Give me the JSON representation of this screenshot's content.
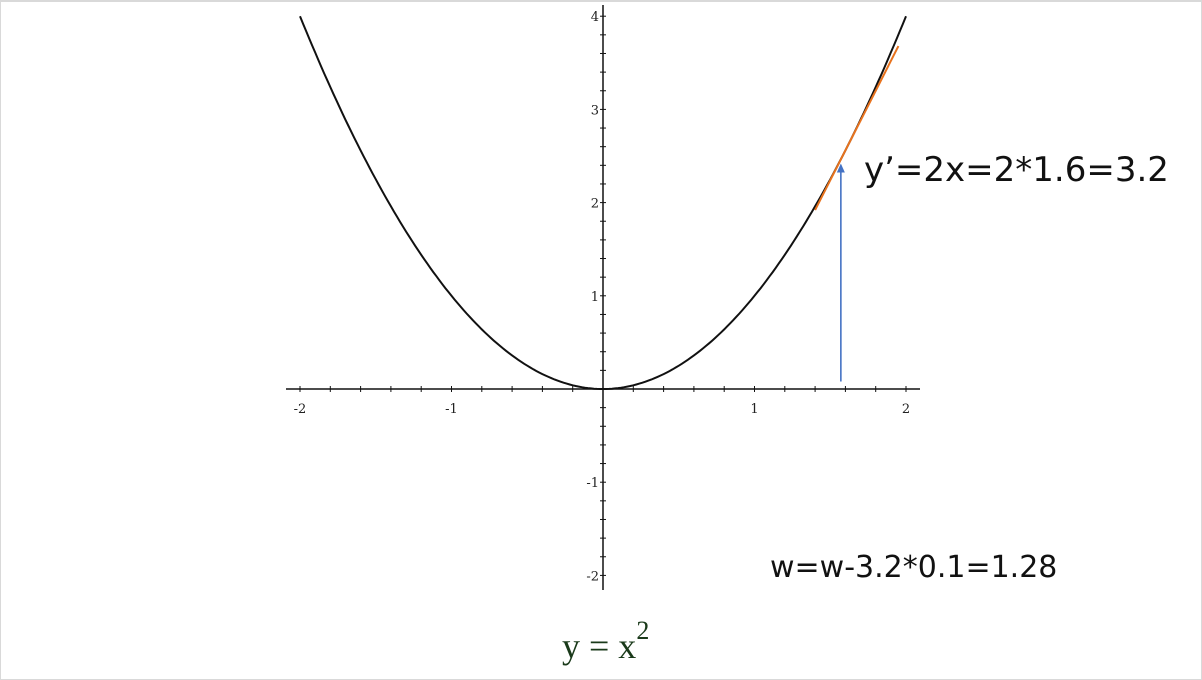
{
  "chart_data": {
    "type": "line",
    "function": "y = x^2",
    "xlim": [
      -2,
      2
    ],
    "ylim": [
      -2,
      4
    ],
    "x_ticks": [
      -2,
      -1,
      1,
      2
    ],
    "y_ticks": [
      -2,
      -1,
      1,
      2,
      3,
      4
    ],
    "x_tick_labels": [
      "-2",
      "-1",
      "1",
      "2"
    ],
    "y_tick_labels": [
      "-2",
      "-1",
      "1",
      "2",
      "3",
      "4"
    ],
    "minor_tick_step": 0.2,
    "grid": false,
    "series": [
      {
        "x_range": [
          -2,
          2
        ],
        "color": "#111111"
      }
    ],
    "tangent": {
      "at_x": 1.6,
      "slope": 3.2,
      "x_range": [
        1.4,
        1.95
      ],
      "color": "#e8731e"
    },
    "arrow": {
      "x": 1.57,
      "y_from": 0.08,
      "y_to": 2.42,
      "color": "#4472c4"
    },
    "annotations": {
      "derivative": "y’=2x=2*1.6=3.2",
      "update": "w=w-3.2*0.1=1.28"
    },
    "caption": {
      "base": "y = x",
      "exponent": "2"
    }
  }
}
